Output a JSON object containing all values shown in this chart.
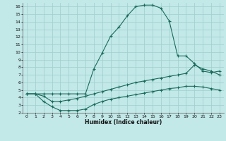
{
  "xlabel": "Humidex (Indice chaleur)",
  "bg_color": "#c2e8e8",
  "grid_color": "#9ecece",
  "line_color": "#1a6b5a",
  "xlim": [
    -0.5,
    23.5
  ],
  "ylim": [
    2,
    16.5
  ],
  "xticks": [
    0,
    1,
    2,
    3,
    4,
    5,
    6,
    7,
    8,
    9,
    10,
    11,
    12,
    13,
    14,
    15,
    16,
    17,
    18,
    19,
    20,
    21,
    22,
    23
  ],
  "yticks": [
    2,
    3,
    4,
    5,
    6,
    7,
    8,
    9,
    10,
    11,
    12,
    13,
    14,
    15,
    16
  ],
  "line1_x": [
    0,
    1,
    2,
    3,
    4,
    5,
    6,
    7,
    8,
    9,
    10,
    11,
    12,
    13,
    14,
    15,
    16,
    17,
    18,
    19,
    20,
    21,
    22,
    23
  ],
  "line1_y": [
    4.5,
    4.5,
    4.5,
    4.5,
    4.5,
    4.5,
    4.5,
    4.5,
    7.8,
    9.9,
    12.1,
    13.3,
    14.8,
    16.0,
    16.2,
    16.2,
    15.8,
    14.1,
    9.5,
    9.5,
    8.5,
    7.5,
    7.3,
    7.5
  ],
  "line2_x": [
    0,
    1,
    2,
    3,
    4,
    5,
    6,
    7,
    8,
    9,
    10,
    11,
    12,
    13,
    14,
    15,
    16,
    17,
    18,
    19,
    20,
    21,
    22,
    23
  ],
  "line2_y": [
    4.5,
    4.5,
    4.2,
    3.5,
    3.5,
    3.7,
    3.9,
    4.2,
    4.5,
    4.8,
    5.1,
    5.4,
    5.7,
    6.0,
    6.2,
    6.4,
    6.6,
    6.8,
    7.0,
    7.2,
    8.3,
    7.8,
    7.5,
    7.0
  ],
  "line3_x": [
    0,
    1,
    2,
    3,
    4,
    5,
    6,
    7,
    8,
    9,
    10,
    11,
    12,
    13,
    14,
    15,
    16,
    17,
    18,
    19,
    20,
    21,
    22,
    23
  ],
  "line3_y": [
    4.5,
    4.5,
    3.5,
    2.8,
    2.3,
    2.3,
    2.3,
    2.5,
    3.1,
    3.5,
    3.8,
    4.0,
    4.2,
    4.4,
    4.6,
    4.8,
    5.0,
    5.2,
    5.3,
    5.5,
    5.5,
    5.4,
    5.2,
    5.0
  ]
}
